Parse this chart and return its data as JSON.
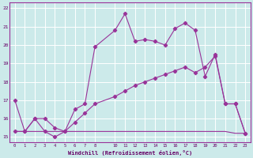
{
  "xlabel": "Windchill (Refroidissement éolien,°C)",
  "bg_color": "#cceaea",
  "grid_color": "#ffffff",
  "line_color": "#993399",
  "xlim": [
    -0.5,
    23.5
  ],
  "ylim": [
    14.7,
    22.3
  ],
  "xticks": [
    0,
    1,
    2,
    3,
    4,
    5,
    6,
    7,
    8,
    10,
    11,
    12,
    13,
    14,
    15,
    16,
    17,
    18,
    19,
    20,
    21,
    22,
    23
  ],
  "yticks": [
    15,
    16,
    17,
    18,
    19,
    20,
    21,
    22
  ],
  "series1_x": [
    0,
    1,
    2,
    3,
    4,
    5,
    6,
    7,
    8,
    10,
    11,
    12,
    13,
    14,
    15,
    16,
    17,
    18,
    19,
    20,
    21,
    22,
    23
  ],
  "series1_y": [
    17.0,
    15.3,
    16.0,
    16.0,
    15.5,
    15.3,
    16.5,
    16.8,
    19.9,
    20.8,
    21.7,
    20.2,
    20.3,
    20.2,
    20.0,
    20.9,
    21.2,
    20.8,
    18.3,
    19.5,
    16.8,
    16.8,
    15.2
  ],
  "series2_x": [
    0,
    1,
    2,
    3,
    4,
    5,
    6,
    7,
    8,
    10,
    11,
    12,
    13,
    14,
    15,
    16,
    17,
    18,
    19,
    20,
    21,
    22,
    23
  ],
  "series2_y": [
    15.3,
    15.3,
    16.0,
    15.3,
    15.0,
    15.3,
    15.8,
    16.3,
    16.8,
    17.2,
    17.5,
    17.8,
    18.0,
    18.2,
    18.4,
    18.6,
    18.8,
    18.5,
    18.8,
    19.4,
    16.8,
    16.8,
    15.2
  ],
  "series3_x": [
    0,
    1,
    2,
    3,
    4,
    5,
    6,
    7,
    8,
    10,
    11,
    12,
    13,
    14,
    15,
    16,
    17,
    18,
    19,
    20,
    21,
    22,
    23
  ],
  "series3_y": [
    15.3,
    15.3,
    15.3,
    15.3,
    15.3,
    15.3,
    15.3,
    15.3,
    15.3,
    15.3,
    15.3,
    15.3,
    15.3,
    15.3,
    15.3,
    15.3,
    15.3,
    15.3,
    15.3,
    15.3,
    15.3,
    15.2,
    15.2
  ]
}
